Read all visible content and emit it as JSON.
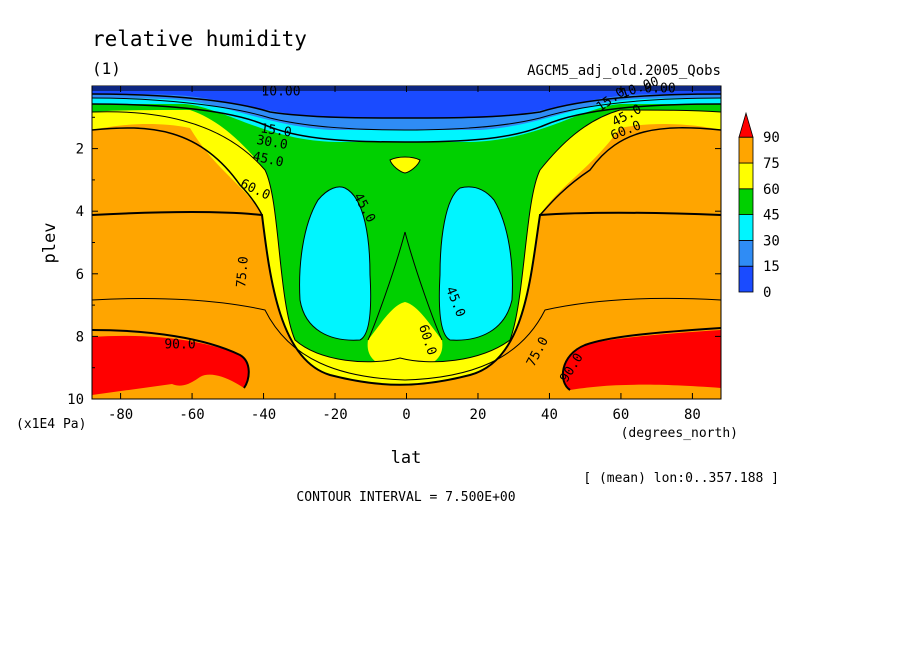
{
  "figure": {
    "title": "relative humidity",
    "panel": "(1)",
    "run_label": "AGCM5_adj_old.2005_Qobs",
    "y_unit": "(x1E4 Pa)",
    "x_unit": "(degrees_north)",
    "mean_note": "[ (mean) lon:0..357.188 ]",
    "contour_interval": "CONTOUR INTERVAL = 7.500E+00"
  },
  "colors": {
    "levels": [
      0,
      15,
      30,
      45,
      60,
      75,
      90
    ],
    "fills": [
      "#1a4bff",
      "#2f8cf5",
      "#00f5ff",
      "#00d000",
      "#ffff00",
      "#ffa500",
      "#ff0000"
    ]
  },
  "chart_data": {
    "type": "heatmap",
    "variable": "relative humidity",
    "xlabel": "lat",
    "ylabel": "plev",
    "xlim": [
      -88,
      88
    ],
    "ylim": [
      0,
      10
    ],
    "y_inverted": true,
    "x_ticks": [
      "-80",
      "-60",
      "-40",
      "-20",
      "0",
      "20",
      "40",
      "60",
      "80"
    ],
    "y_ticks": [
      "2",
      "4",
      "6",
      "8",
      "10"
    ],
    "colorbar_labels": [
      "90",
      "75",
      "60",
      "45",
      "30",
      "15",
      "0"
    ],
    "colorbar_extend": "max",
    "contour_labels": [
      "10.00",
      "15.0",
      "30.0",
      "45.0",
      "60.0",
      "45.0",
      "75.0",
      "90.0",
      "45.0",
      "60.0",
      "75.0",
      "90.0",
      "15.0",
      "45.0",
      "10.00",
      "60.0",
      "0.00"
    ],
    "grid": false
  }
}
